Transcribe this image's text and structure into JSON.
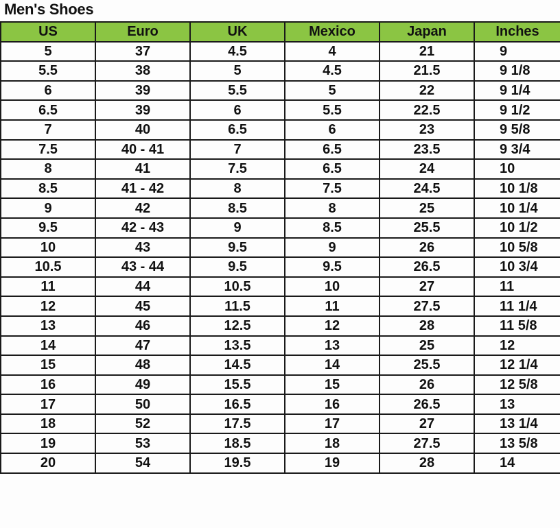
{
  "title": "Men's Shoes",
  "header_color": "#8bc543",
  "columns": [
    "US",
    "Euro",
    "UK",
    "Mexico",
    "Japan",
    "Inches"
  ],
  "rows": [
    [
      "5",
      "37",
      "4.5",
      "4",
      "21",
      "9"
    ],
    [
      "5.5",
      "38",
      "5",
      "4.5",
      "21.5",
      "9 1/8"
    ],
    [
      "6",
      "39",
      "5.5",
      "5",
      "22",
      "9 1/4"
    ],
    [
      "6.5",
      "39",
      "6",
      "5.5",
      "22.5",
      "9 1/2"
    ],
    [
      "7",
      "40",
      "6.5",
      "6",
      "23",
      "9 5/8"
    ],
    [
      "7.5",
      "40 - 41",
      "7",
      "6.5",
      "23.5",
      "9 3/4"
    ],
    [
      "8",
      "41",
      "7.5",
      "6.5",
      "24",
      "10"
    ],
    [
      "8.5",
      "41 - 42",
      "8",
      "7.5",
      "24.5",
      "10 1/8"
    ],
    [
      "9",
      "42",
      "8.5",
      "8",
      "25",
      "10 1/4"
    ],
    [
      "9.5",
      "42 - 43",
      "9",
      "8.5",
      "25.5",
      "10 1/2"
    ],
    [
      "10",
      "43",
      "9.5",
      "9",
      "26",
      "10 5/8"
    ],
    [
      "10.5",
      "43 - 44",
      "9.5",
      "9.5",
      "26.5",
      "10 3/4"
    ],
    [
      "11",
      "44",
      "10.5",
      "10",
      "27",
      "11"
    ],
    [
      "12",
      "45",
      "11.5",
      "11",
      "27.5",
      "11 1/4"
    ],
    [
      "13",
      "46",
      "12.5",
      "12",
      "28",
      "11 5/8"
    ],
    [
      "14",
      "47",
      "13.5",
      "13",
      "25",
      "12"
    ],
    [
      "15",
      "48",
      "14.5",
      "14",
      "25.5",
      "12 1/4"
    ],
    [
      "16",
      "49",
      "15.5",
      "15",
      "26",
      "12 5/8"
    ],
    [
      "17",
      "50",
      "16.5",
      "16",
      "26.5",
      "13"
    ],
    [
      "18",
      "52",
      "17.5",
      "17",
      "27",
      "13 1/4"
    ],
    [
      "19",
      "53",
      "18.5",
      "18",
      "27.5",
      "13 5/8"
    ],
    [
      "20",
      "54",
      "19.5",
      "19",
      "28",
      "14"
    ]
  ]
}
